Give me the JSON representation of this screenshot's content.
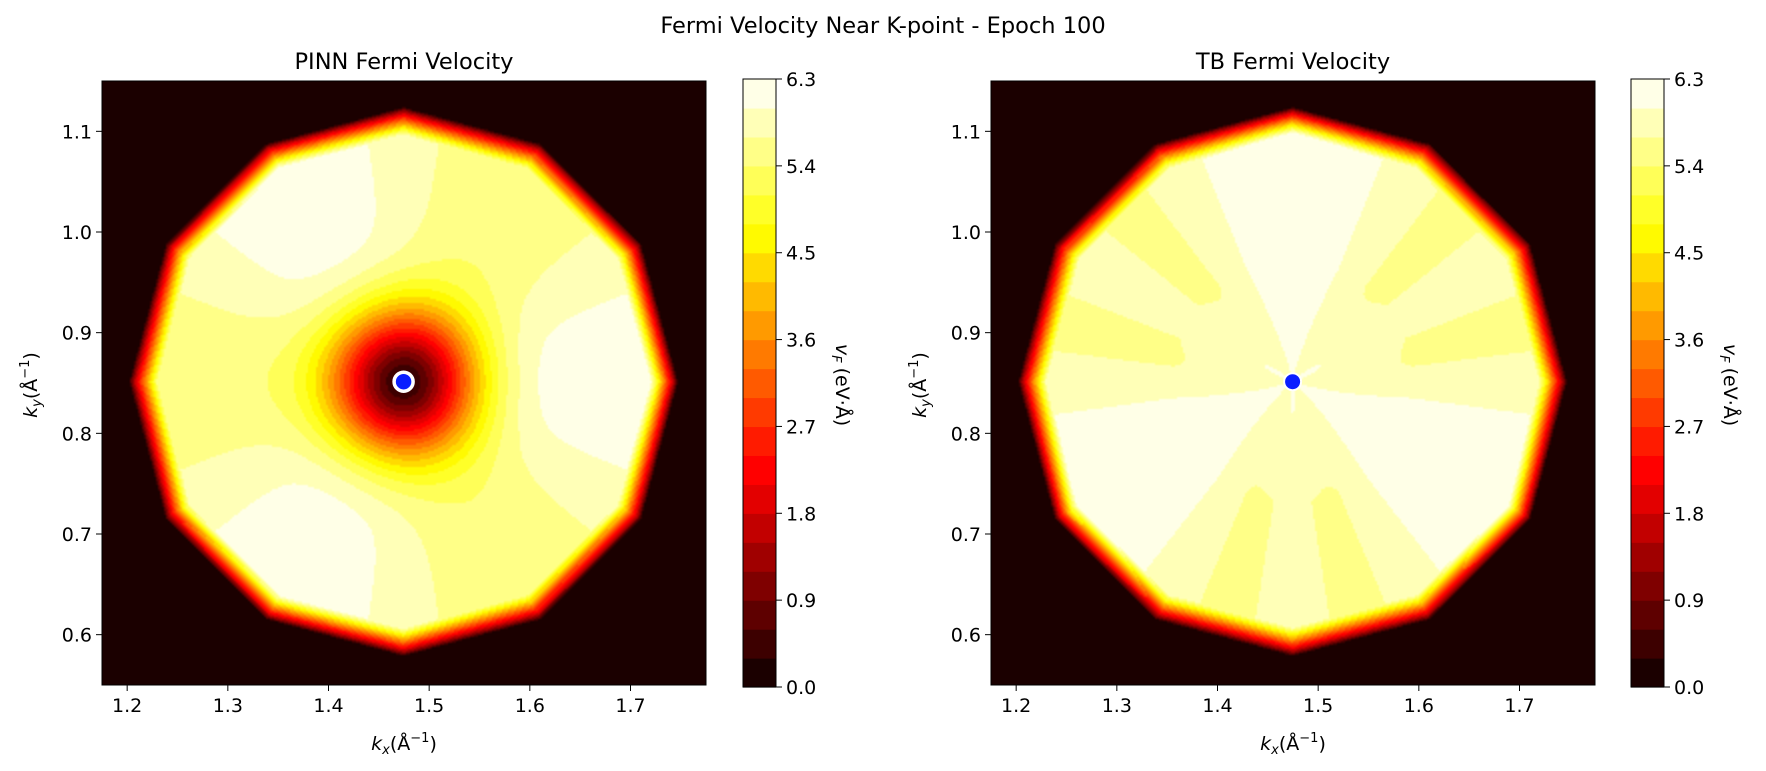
{
  "figure_title": "Fermi Velocity Near K-point - Epoch 100",
  "colors": {
    "background_outside": "#1a0000",
    "marker_fill": "#0a1eff",
    "marker_edge": "#ffffff",
    "colormap": "hot"
  },
  "chart_data": [
    {
      "type": "heatmap",
      "title": "PINN Fermi Velocity",
      "xlabel": "k_x (Å⁻¹)",
      "ylabel": "k_y (Å⁻¹)",
      "xlabel_var": "k",
      "xlabel_sub": "x",
      "xlabel_unit": "(Å",
      "xlabel_sup": "−1",
      "xlabel_close": ")",
      "ylabel_var": "k",
      "ylabel_sub": "y",
      "ylabel_unit": "(Å",
      "ylabel_sup": "−1",
      "ylabel_close": ")",
      "xlim": [
        1.175,
        1.775
      ],
      "ylim": [
        0.55,
        1.15
      ],
      "xticks": [
        1.2,
        1.3,
        1.4,
        1.5,
        1.6,
        1.7
      ],
      "xtick_labels": [
        "1.2",
        "1.3",
        "1.4",
        "1.5",
        "1.6",
        "1.7"
      ],
      "yticks": [
        0.6,
        0.7,
        0.8,
        0.9,
        1.0,
        1.1
      ],
      "ytick_labels": [
        "0.6",
        "0.7",
        "0.8",
        "0.9",
        "1.0",
        "1.1"
      ],
      "k_point": [
        1.4746,
        0.8513
      ],
      "dip_near_k": true,
      "colorbar": {
        "label": "v_F (eV·Å)",
        "label_var": "v",
        "label_sub": "F",
        "label_unit": "(eV·Å)",
        "range": [
          0.0,
          6.3
        ],
        "levels": 21,
        "ticks": [
          0.0,
          0.9,
          1.8,
          2.7,
          3.6,
          4.5,
          5.4,
          6.3
        ],
        "tick_labels": [
          "0.0",
          "0.9",
          "1.8",
          "2.7",
          "3.6",
          "4.5",
          "5.4",
          "6.3"
        ]
      }
    },
    {
      "type": "heatmap",
      "title": "TB Fermi Velocity",
      "xlabel": "k_x (Å⁻¹)",
      "ylabel": "k_y (Å⁻¹)",
      "xlabel_var": "k",
      "xlabel_sub": "x",
      "xlabel_unit": "(Å",
      "xlabel_sup": "−1",
      "xlabel_close": ")",
      "ylabel_var": "k",
      "ylabel_sub": "y",
      "ylabel_unit": "(Å",
      "ylabel_sup": "−1",
      "ylabel_close": ")",
      "xlim": [
        1.175,
        1.775
      ],
      "ylim": [
        0.55,
        1.15
      ],
      "xticks": [
        1.2,
        1.3,
        1.4,
        1.5,
        1.6,
        1.7
      ],
      "xtick_labels": [
        "1.2",
        "1.3",
        "1.4",
        "1.5",
        "1.6",
        "1.7"
      ],
      "yticks": [
        0.6,
        0.7,
        0.8,
        0.9,
        1.0,
        1.1
      ],
      "ytick_labels": [
        "0.6",
        "0.7",
        "0.8",
        "0.9",
        "1.0",
        "1.1"
      ],
      "k_point": [
        1.4746,
        0.8513
      ],
      "dip_near_k": false,
      "colorbar": {
        "label": "v_F (eV·Å)",
        "label_var": "v",
        "label_sub": "F",
        "label_unit": "(eV·Å)",
        "range": [
          0.0,
          6.3
        ],
        "levels": 21,
        "ticks": [
          0.0,
          0.9,
          1.8,
          2.7,
          3.6,
          4.5,
          5.4,
          6.3
        ],
        "tick_labels": [
          "0.0",
          "0.9",
          "1.8",
          "2.7",
          "3.6",
          "4.5",
          "5.4",
          "6.3"
        ]
      }
    }
  ]
}
